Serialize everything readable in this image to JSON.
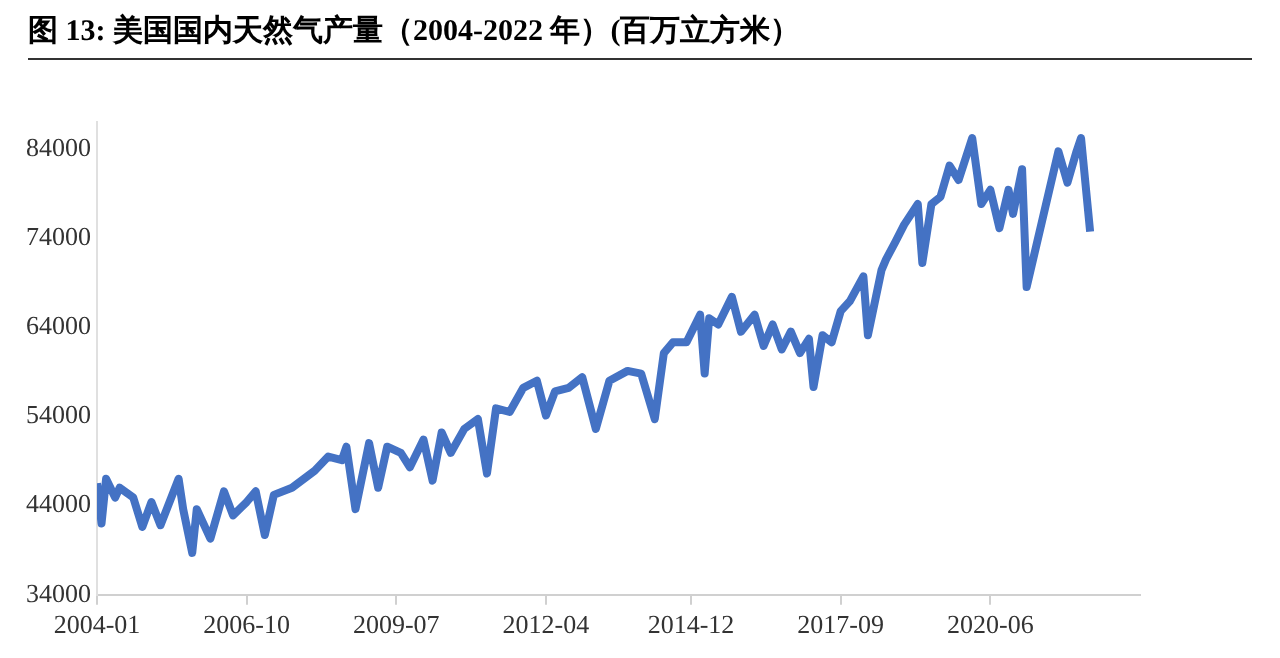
{
  "chart_data": {
    "type": "line",
    "title": "图  13:  美国国内天然气产量（2004-2022 年）(百万立方米）",
    "x": [
      "2004-01",
      "2004-02",
      "2004-03",
      "2004-05",
      "2004-06",
      "2004-09",
      "2004-11",
      "2005-01",
      "2005-03",
      "2005-07",
      "2005-08",
      "2005-10",
      "2005-11",
      "2006-02",
      "2006-05",
      "2006-07",
      "2006-10",
      "2006-12",
      "2007-02",
      "2007-04",
      "2007-08",
      "2008-01",
      "2008-04",
      "2008-07",
      "2008-08",
      "2008-10",
      "2009-01",
      "2009-03",
      "2009-05",
      "2009-08",
      "2009-10",
      "2010-01",
      "2010-03",
      "2010-05",
      "2010-07",
      "2010-10",
      "2011-01",
      "2011-03",
      "2011-05",
      "2011-08",
      "2011-11",
      "2012-02",
      "2012-04",
      "2012-06",
      "2012-09",
      "2012-12",
      "2013-03",
      "2013-06",
      "2013-10",
      "2014-01",
      "2014-04",
      "2014-06",
      "2014-08",
      "2014-11",
      "2015-02",
      "2015-03",
      "2015-04",
      "2015-06",
      "2015-09",
      "2015-11",
      "2016-02",
      "2016-04",
      "2016-06",
      "2016-08",
      "2016-10",
      "2016-12",
      "2017-02",
      "2017-03",
      "2017-05",
      "2017-07",
      "2017-09",
      "2017-11",
      "2018-02",
      "2018-03",
      "2018-06",
      "2018-07",
      "2018-09",
      "2018-11",
      "2019-02",
      "2019-03",
      "2019-05",
      "2019-07",
      "2019-09",
      "2019-11",
      "2020-02",
      "2020-04",
      "2020-06",
      "2020-08",
      "2020-10",
      "2020-11",
      "2021-01",
      "2021-02",
      "2021-09",
      "2021-11",
      "2022-01",
      "2022-02",
      "2022-04"
    ],
    "series": [
      {
        "color": "#4472c4",
        "values": [
          46500,
          42000,
          47000,
          44900,
          46000,
          44900,
          41600,
          44400,
          41800,
          47000,
          43600,
          38700,
          43600,
          40300,
          45600,
          42900,
          44400,
          45600,
          40700,
          45200,
          46000,
          47900,
          49500,
          49100,
          50600,
          43600,
          51000,
          46000,
          50600,
          49900,
          48300,
          51400,
          46800,
          52200,
          49900,
          52600,
          53700,
          47600,
          54900,
          54500,
          57200,
          58000,
          54100,
          56800,
          57200,
          58400,
          52600,
          58000,
          59100,
          58800,
          53700,
          61100,
          62300,
          62300,
          65400,
          58800,
          65000,
          64300,
          67400,
          63500,
          65400,
          61900,
          64300,
          61500,
          63500,
          61100,
          62700,
          57300,
          63100,
          62300,
          65800,
          66900,
          69700,
          63100,
          70400,
          71600,
          73500,
          75500,
          77800,
          71200,
          77800,
          78600,
          82100,
          80500,
          85200,
          77800,
          79400,
          75100,
          79400,
          76700,
          81700,
          68500,
          83700,
          80200,
          83700,
          85200,
          74700
        ]
      }
    ],
    "xlim": [
      "2004-01",
      "2023-03"
    ],
    "xticks": [
      "2004-01",
      "2006-10",
      "2009-07",
      "2012-04",
      "2014-12",
      "2017-09",
      "2020-06"
    ],
    "ylim": [
      34000,
      87000
    ],
    "yticks": [
      34000,
      44000,
      54000,
      64000,
      74000,
      84000
    ],
    "grid": false,
    "legend": false,
    "marker": "none",
    "line_style": "solid"
  }
}
